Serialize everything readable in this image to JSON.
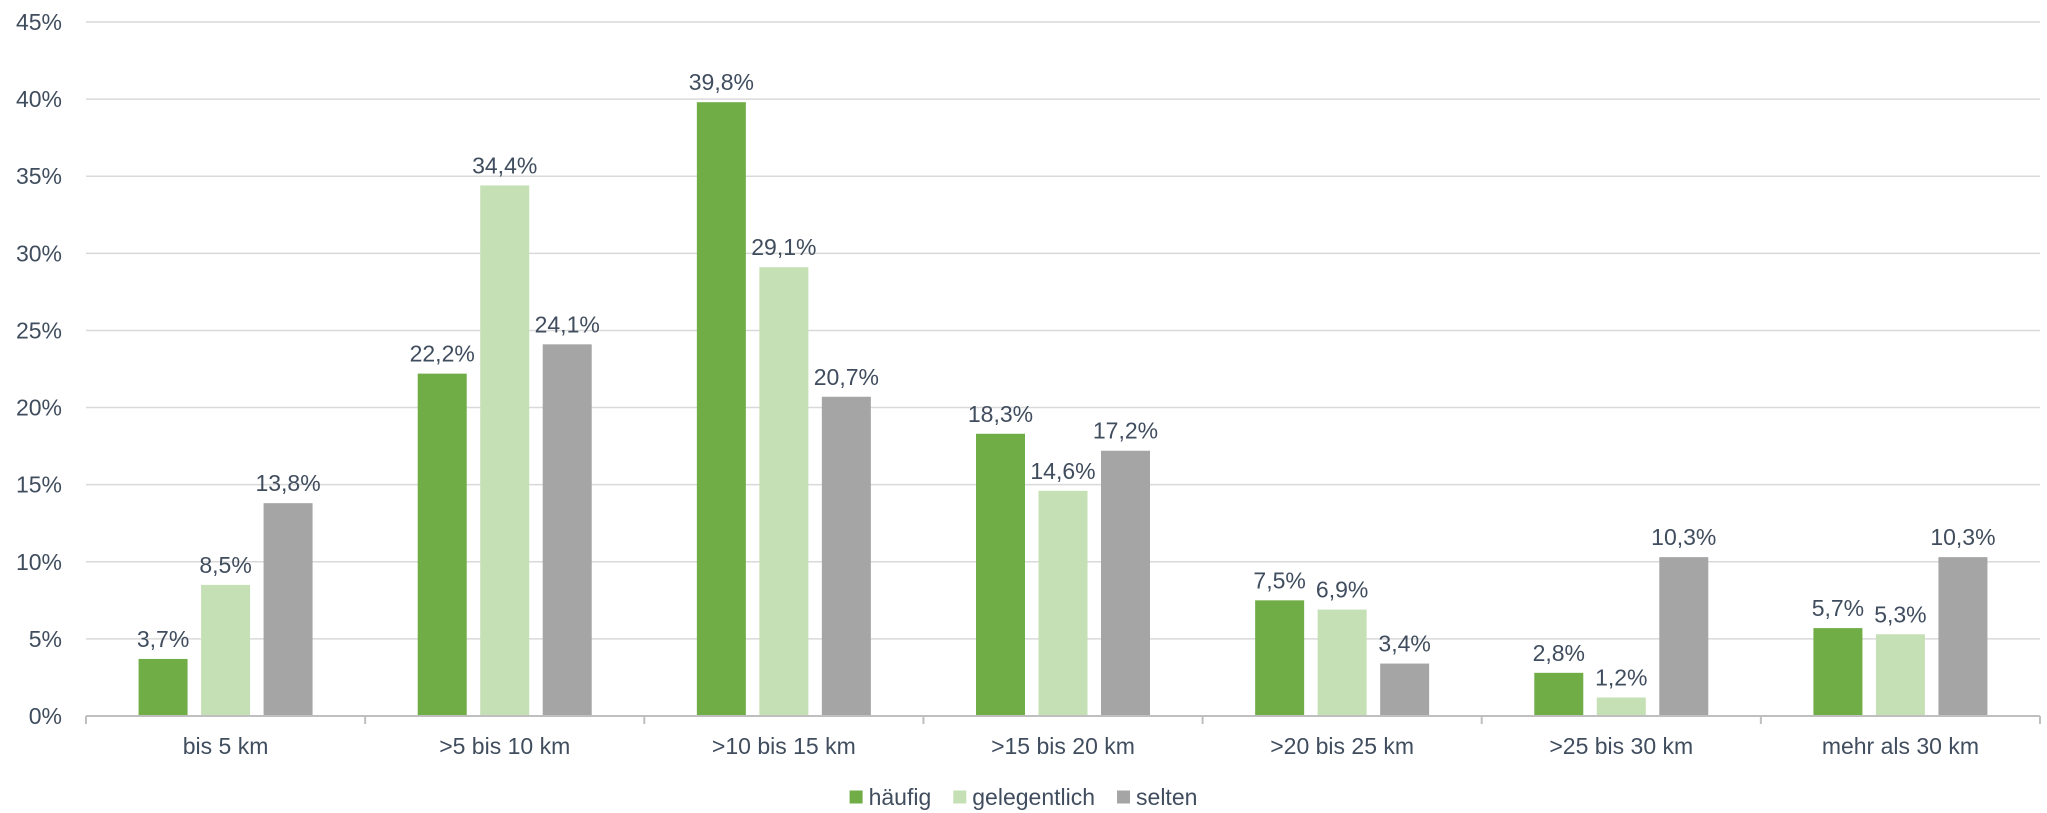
{
  "chart_data": {
    "type": "bar",
    "categories": [
      "bis 5 km",
      ">5 bis 10 km",
      ">10 bis 15 km",
      ">15 bis 20 km",
      ">20 bis 25 km",
      ">25 bis 30 km",
      "mehr als 30 km"
    ],
    "series": [
      {
        "name": "häufig",
        "color": "#70ad47",
        "values": [
          3.7,
          22.2,
          39.8,
          18.3,
          7.5,
          2.8,
          5.7
        ],
        "labels": [
          "3,7%",
          "22,2%",
          "39,8%",
          "18,3%",
          "7,5%",
          "2,8%",
          "5,7%"
        ]
      },
      {
        "name": "gelegentlich",
        "color": "#c5e0b4",
        "values": [
          8.5,
          34.4,
          29.1,
          14.6,
          6.9,
          1.2,
          5.3
        ],
        "labels": [
          "8,5%",
          "34,4%",
          "29,1%",
          "14,6%",
          "6,9%",
          "1,2%",
          "5,3%"
        ]
      },
      {
        "name": "selten",
        "color": "#a5a5a5",
        "values": [
          13.8,
          24.1,
          20.7,
          17.2,
          3.4,
          10.3,
          10.3
        ],
        "labels": [
          "13,8%",
          "24,1%",
          "20,7%",
          "17,2%",
          "3,4%",
          "10,3%",
          "10,3%"
        ]
      }
    ],
    "yticks": [
      "0%",
      "5%",
      "10%",
      "15%",
      "20%",
      "25%",
      "30%",
      "35%",
      "40%",
      "45%"
    ],
    "ylim": [
      0,
      45
    ],
    "grid": true,
    "legend_position": "bottom",
    "title": "",
    "xlabel": "",
    "ylabel": ""
  }
}
